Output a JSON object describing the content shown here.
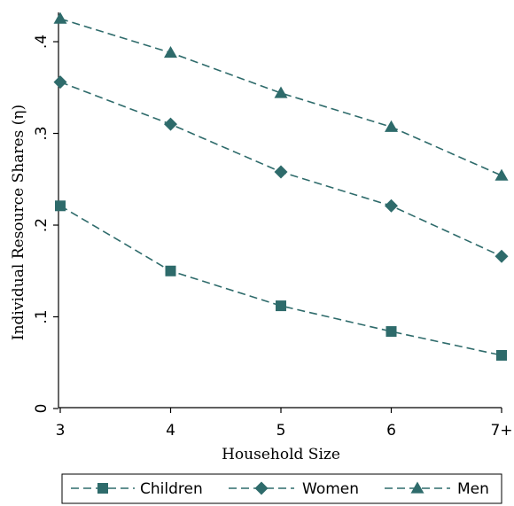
{
  "chart_data": {
    "type": "line",
    "title": "",
    "xlabel": "Household Size",
    "ylabel": "Individual Resource Shares (η)",
    "categories": [
      "3",
      "4",
      "5",
      "6",
      "7+"
    ],
    "ylim": [
      0,
      0.43
    ],
    "yticks": [
      0,
      0.1,
      0.2,
      0.3,
      0.4
    ],
    "ytick_labels": [
      "0",
      ".1",
      ".2",
      ".3",
      ".4"
    ],
    "grid": false,
    "legend_position": "bottom",
    "line_color": "#2e6b6b",
    "series": [
      {
        "name": "Children",
        "marker": "square",
        "values": [
          0.221,
          0.15,
          0.112,
          0.084,
          0.058
        ]
      },
      {
        "name": "Women",
        "marker": "diamond",
        "values": [
          0.356,
          0.31,
          0.258,
          0.221,
          0.166
        ]
      },
      {
        "name": "Men",
        "marker": "triangle",
        "values": [
          0.425,
          0.388,
          0.344,
          0.307,
          0.254
        ]
      }
    ]
  }
}
